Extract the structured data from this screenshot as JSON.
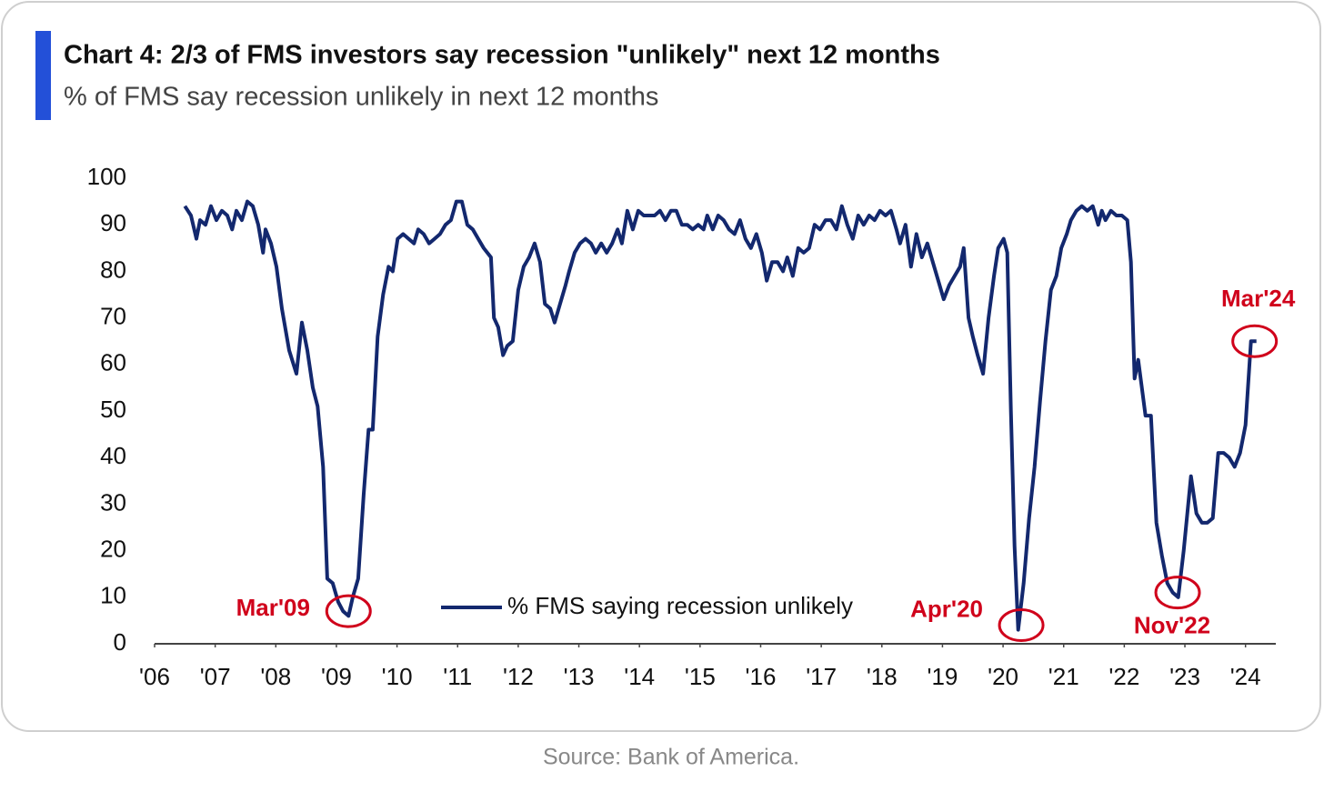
{
  "chart_data": {
    "type": "line",
    "title": "Chart 4: 2/3 of FMS investors say recession \"unlikely\" next 12 months",
    "subtitle": "% of FMS say recession unlikely in next 12 months",
    "source": "Source: Bank of America.",
    "legend": "lower center",
    "xlim": [
      2006,
      2024.5
    ],
    "xticks": [
      {
        "value": 2006,
        "label": "'06"
      },
      {
        "value": 2007,
        "label": "'07"
      },
      {
        "value": 2008,
        "label": "'08"
      },
      {
        "value": 2009,
        "label": "'09"
      },
      {
        "value": 2010,
        "label": "'10"
      },
      {
        "value": 2011,
        "label": "'11"
      },
      {
        "value": 2012,
        "label": "'12"
      },
      {
        "value": 2013,
        "label": "'13"
      },
      {
        "value": 2014,
        "label": "'14"
      },
      {
        "value": 2015,
        "label": "'15"
      },
      {
        "value": 2016,
        "label": "'16"
      },
      {
        "value": 2017,
        "label": "'17"
      },
      {
        "value": 2018,
        "label": "'18"
      },
      {
        "value": 2019,
        "label": "'19"
      },
      {
        "value": 2020,
        "label": "'20"
      },
      {
        "value": 2021,
        "label": "'21"
      },
      {
        "value": 2022,
        "label": "'22"
      },
      {
        "value": 2023,
        "label": "'23"
      },
      {
        "value": 2024,
        "label": "'24"
      }
    ],
    "ylim": [
      0,
      100
    ],
    "yticks": [
      0,
      10,
      20,
      30,
      40,
      50,
      60,
      70,
      80,
      90,
      100
    ],
    "x": [
      2006.5,
      2006.6,
      2006.69,
      2006.75,
      2006.84,
      2006.93,
      2007.02,
      2007.11,
      2007.2,
      2007.28,
      2007.35,
      2007.44,
      2007.53,
      2007.62,
      2007.71,
      2007.79,
      2007.83,
      2007.92,
      2008.01,
      2008.1,
      2008.22,
      2008.34,
      2008.43,
      2008.52,
      2008.61,
      2008.69,
      2008.78,
      2008.85,
      2008.94,
      2009.03,
      2009.11,
      2009.2,
      2009.27,
      2009.36,
      2009.45,
      2009.53,
      2009.6,
      2009.68,
      2009.77,
      2009.86,
      2009.93,
      2010.01,
      2010.1,
      2010.19,
      2010.28,
      2010.35,
      2010.44,
      2010.53,
      2010.62,
      2010.71,
      2010.8,
      2010.89,
      2010.98,
      2011.07,
      2011.16,
      2011.25,
      2011.34,
      2011.43,
      2011.55,
      2011.6,
      2011.67,
      2011.75,
      2011.82,
      2011.91,
      2012.0,
      2012.09,
      2012.18,
      2012.27,
      2012.36,
      2012.44,
      2012.53,
      2012.6,
      2012.69,
      2012.78,
      2012.84,
      2012.93,
      2013.02,
      2013.11,
      2013.2,
      2013.28,
      2013.37,
      2013.46,
      2013.55,
      2013.64,
      2013.71,
      2013.8,
      2013.89,
      2013.98,
      2014.07,
      2014.16,
      2014.25,
      2014.34,
      2014.43,
      2014.52,
      2014.61,
      2014.7,
      2014.79,
      2014.88,
      2014.97,
      2015.06,
      2015.12,
      2015.21,
      2015.3,
      2015.39,
      2015.48,
      2015.57,
      2015.66,
      2015.75,
      2015.84,
      2015.93,
      2016.02,
      2016.1,
      2016.19,
      2016.28,
      2016.37,
      2016.44,
      2016.53,
      2016.62,
      2016.71,
      2016.8,
      2016.89,
      2016.98,
      2017.07,
      2017.16,
      2017.25,
      2017.34,
      2017.43,
      2017.52,
      2017.61,
      2017.7,
      2017.79,
      2017.88,
      2017.97,
      2018.06,
      2018.15,
      2018.24,
      2018.3,
      2018.39,
      2018.48,
      2018.57,
      2018.66,
      2018.75,
      2018.84,
      2018.93,
      2019.02,
      2019.11,
      2019.2,
      2019.29,
      2019.35,
      2019.43,
      2019.5,
      2019.58,
      2019.67,
      2019.76,
      2019.85,
      2019.92,
      2020.01,
      2020.07,
      2020.13,
      2020.19,
      2020.25,
      2020.34,
      2020.43,
      2020.52,
      2020.61,
      2020.7,
      2020.79,
      2020.88,
      2020.96,
      2021.05,
      2021.12,
      2021.21,
      2021.3,
      2021.39,
      2021.48,
      2021.57,
      2021.63,
      2021.69,
      2021.78,
      2021.87,
      2021.96,
      2022.05,
      2022.11,
      2022.17,
      2022.23,
      2022.29,
      2022.35,
      2022.44,
      2022.53,
      2022.62,
      2022.71,
      2022.8,
      2022.89,
      2022.98,
      2023.1,
      2023.19,
      2023.28,
      2023.37,
      2023.46,
      2023.55,
      2023.64,
      2023.73,
      2023.82,
      2023.91,
      2024.0,
      2024.09,
      2024.18
    ],
    "series": [
      {
        "name": "% FMS saying recession unlikely",
        "color": "#13286e",
        "values": [
          94,
          92,
          87,
          91,
          90,
          94,
          91,
          93,
          92,
          89,
          93,
          91,
          95,
          94,
          90,
          84,
          89,
          86,
          81,
          72,
          63,
          58,
          69,
          63,
          55,
          51,
          38,
          14,
          13,
          9,
          7,
          6,
          10,
          14,
          32,
          46,
          46,
          66,
          75,
          81,
          80,
          87,
          88,
          87,
          86,
          89,
          88,
          86,
          87,
          88,
          90,
          91,
          95,
          95,
          90,
          89,
          87,
          85,
          83,
          70,
          68,
          62,
          64,
          65,
          76,
          81,
          83,
          86,
          82,
          73,
          72,
          69,
          73,
          77,
          80,
          84,
          86,
          87,
          86,
          84,
          86,
          84,
          86,
          89,
          86,
          93,
          89,
          93,
          92,
          92,
          92,
          93,
          91,
          93,
          93,
          90,
          90,
          89,
          90,
          89,
          92,
          89,
          92,
          91,
          89,
          88,
          91,
          87,
          85,
          88,
          84,
          78,
          82,
          82,
          80,
          83,
          79,
          85,
          84,
          85,
          90,
          89,
          91,
          91,
          89,
          94,
          90,
          87,
          92,
          90,
          92,
          91,
          93,
          92,
          93,
          89,
          86,
          90,
          81,
          88,
          83,
          86,
          82,
          78,
          74,
          77,
          79,
          81,
          85,
          70,
          66,
          62,
          58,
          70,
          79,
          85,
          87,
          84,
          50,
          21,
          3,
          13,
          27,
          38,
          52,
          65,
          76,
          79,
          85,
          88,
          91,
          93,
          94,
          93,
          94,
          90,
          93,
          91,
          93,
          92,
          92,
          91,
          82,
          57,
          61,
          55,
          49,
          49,
          26,
          19,
          13,
          11,
          10,
          20,
          36,
          28,
          26,
          26,
          27,
          41,
          41,
          40,
          38,
          41,
          47,
          65,
          65
        ]
      }
    ],
    "annotations": [
      {
        "text": "Mar'09",
        "x": 2009.2,
        "y": 7,
        "color": "#d0021b"
      },
      {
        "text": "Apr'20",
        "x": 2020.3,
        "y": 4,
        "color": "#d0021b"
      },
      {
        "text": "Nov'22",
        "x": 2022.88,
        "y": 11,
        "color": "#d0021b"
      },
      {
        "text": "Mar'24",
        "x": 2024.15,
        "y": 65,
        "color": "#d0021b"
      }
    ]
  }
}
